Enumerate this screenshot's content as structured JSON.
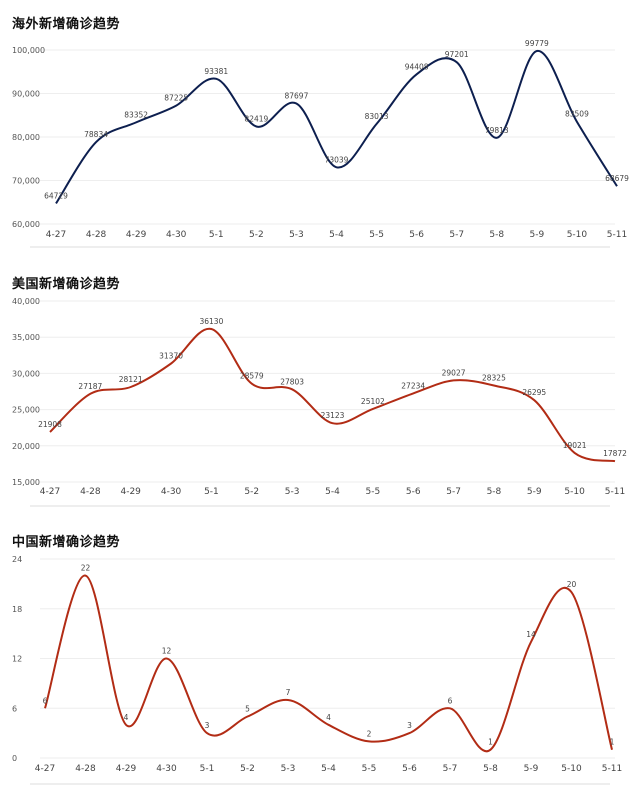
{
  "chart_data": [
    {
      "type": "line",
      "title": "海外新增确诊趋势",
      "categories": [
        "4-27",
        "4-28",
        "4-29",
        "4-30",
        "5-1",
        "5-2",
        "5-3",
        "5-4",
        "5-5",
        "5-6",
        "5-7",
        "5-8",
        "5-9",
        "5-10",
        "5-11"
      ],
      "series": [
        {
          "values": [
            64729,
            78834,
            83352,
            87225,
            93381,
            82419,
            87697,
            73039,
            83013,
            94408,
            97201,
            79813,
            99779,
            83509,
            68679
          ]
        }
      ],
      "yticks": [
        "60,000",
        "70,000",
        "80,000",
        "90,000",
        "100,000"
      ],
      "ylim": [
        60000,
        100000
      ],
      "color": "#0d1f4f",
      "grid": true
    },
    {
      "type": "line",
      "title": "美国新增确诊趋势",
      "categories": [
        "4-27",
        "4-28",
        "4-29",
        "4-30",
        "5-1",
        "5-2",
        "5-3",
        "5-4",
        "5-5",
        "5-6",
        "5-7",
        "5-8",
        "5-9",
        "5-10",
        "5-11"
      ],
      "series": [
        {
          "values": [
            21908,
            27187,
            28121,
            31370,
            36130,
            28579,
            27803,
            23123,
            25102,
            27234,
            29027,
            28325,
            26295,
            19021,
            17872
          ]
        }
      ],
      "yticks": [
        "15,000",
        "20,000",
        "25,000",
        "30,000",
        "35,000",
        "40,000"
      ],
      "ylim": [
        15000,
        40000
      ],
      "color": "#b22c15",
      "grid": true
    },
    {
      "type": "line",
      "title": "中国新增确诊趋势",
      "categories": [
        "4-27",
        "4-28",
        "4-29",
        "4-30",
        "5-1",
        "5-2",
        "5-3",
        "5-4",
        "5-5",
        "5-6",
        "5-7",
        "5-8",
        "5-9",
        "5-10",
        "5-11"
      ],
      "series": [
        {
          "values": [
            6,
            22,
            4,
            12,
            3,
            5,
            7,
            4,
            2,
            3,
            6,
            1,
            14,
            20,
            1
          ]
        }
      ],
      "yticks": [
        "0",
        "6",
        "12",
        "18",
        "24"
      ],
      "ylim": [
        0,
        24
      ],
      "color": "#b22c15",
      "grid": true
    }
  ]
}
